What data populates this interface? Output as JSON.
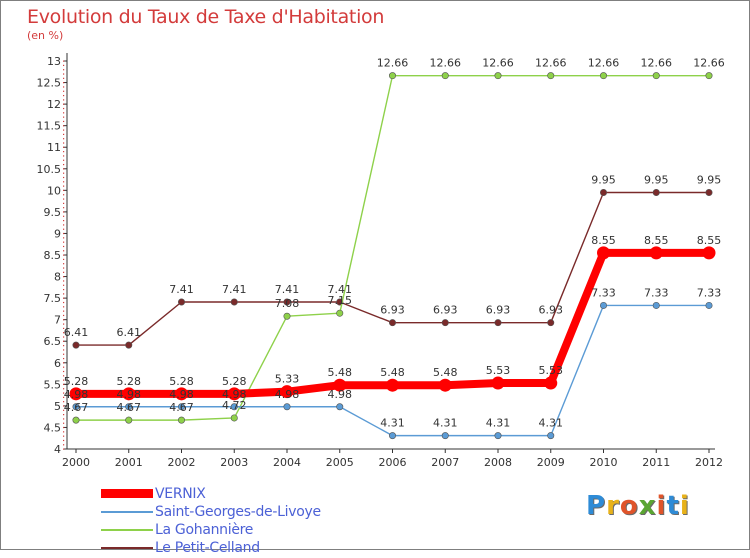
{
  "title": "Evolution du Taux de Taxe d'Habitation",
  "subtitle": "(en %)",
  "logo": {
    "text": "Proxiti",
    "letters": [
      {
        "ch": "P",
        "color": "#2e8bd6"
      },
      {
        "ch": "r",
        "color": "#e8b21a"
      },
      {
        "ch": "o",
        "color": "#e0542a"
      },
      {
        "ch": "x",
        "color": "#5aa532"
      },
      {
        "ch": "i",
        "color": "#e0542a"
      },
      {
        "ch": "t",
        "color": "#2e8bd6"
      },
      {
        "ch": "i",
        "color": "#e8b21a"
      }
    ]
  },
  "chart_data": {
    "type": "line",
    "x": [
      "2000",
      "2001",
      "2002",
      "2003",
      "2004",
      "2005",
      "2006",
      "2007",
      "2008",
      "2009",
      "2010",
      "2011",
      "2012"
    ],
    "ylim": [
      4,
      13
    ],
    "yticks": [
      "4",
      "4.5",
      "5",
      "5.5",
      "6",
      "6.5",
      "7",
      "7.5",
      "8",
      "8.5",
      "9",
      "9.5",
      "10",
      "10.5",
      "11",
      "11.5",
      "12",
      "12.5",
      "13"
    ],
    "grid": false,
    "legend_position": "bottom-left",
    "series": [
      {
        "name": "VERNIX",
        "color": "#ff0000",
        "values": [
          5.28,
          5.28,
          5.28,
          5.28,
          5.33,
          5.48,
          5.48,
          5.48,
          5.53,
          5.53,
          8.55,
          8.55,
          8.55
        ],
        "labels": [
          "5.28",
          "5.28",
          "5.28",
          "5.28",
          "5.33",
          "5.48",
          "5.48",
          "5.48",
          "5.53",
          "5.53",
          "8.55",
          "8.55",
          "8.55"
        ]
      },
      {
        "name": "Saint-Georges-de-Livoye",
        "color": "#5b9bd5",
        "values": [
          4.98,
          4.98,
          4.98,
          4.98,
          4.98,
          4.98,
          4.31,
          4.31,
          4.31,
          4.31,
          7.33,
          7.33,
          7.33
        ],
        "labels": [
          "4.98",
          "4.98",
          "4.98",
          "4.98",
          "4.98",
          "4.98",
          "4.31",
          "4.31",
          "4.31",
          "4.31",
          "7.33",
          "7.33",
          "7.33"
        ]
      },
      {
        "name": "La Gohannière",
        "color": "#8ed14a",
        "values": [
          4.67,
          4.67,
          4.67,
          4.72,
          7.08,
          7.15,
          12.66,
          12.66,
          12.66,
          12.66,
          12.66,
          12.66,
          12.66
        ],
        "labels": [
          "4.67",
          "4.67",
          "4.67",
          "4.72",
          "7.08",
          "7.15",
          "12.66",
          "12.66",
          "12.66",
          "12.66",
          "12.66",
          "12.66",
          "12.66"
        ]
      },
      {
        "name": "Le Petit-Celland",
        "color": "#7a2a2a",
        "values": [
          6.41,
          6.41,
          7.41,
          7.41,
          7.41,
          7.41,
          6.93,
          6.93,
          6.93,
          6.93,
          9.95,
          9.95,
          9.95
        ],
        "labels": [
          "6.41",
          "6.41",
          "7.41",
          "7.41",
          "7.41",
          "7.41",
          "6.93",
          "6.93",
          "6.93",
          "6.93",
          "9.95",
          "9.95",
          "9.95"
        ]
      }
    ]
  }
}
